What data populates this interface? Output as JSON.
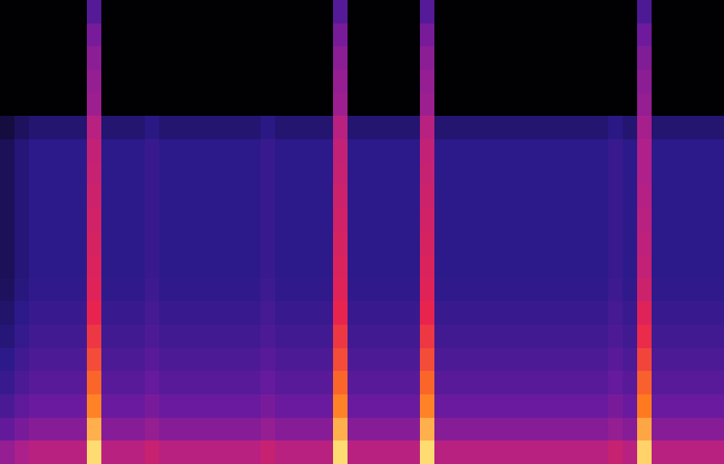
{
  "chart_data": {
    "type": "heatmap",
    "tick_labels": false,
    "zlim": [
      0,
      100
    ],
    "cells": [
      [
        2,
        2,
        2,
        2,
        2,
        2,
        40,
        2,
        2,
        2,
        2,
        2,
        2,
        2,
        2,
        2,
        2,
        2,
        2,
        2,
        2,
        2,
        2,
        40,
        2,
        2,
        2,
        2,
        2,
        40,
        2,
        2,
        2,
        2,
        2,
        2,
        2,
        2,
        2,
        2,
        2,
        2,
        2,
        2,
        38,
        2,
        2,
        2,
        2,
        2
      ],
      [
        2,
        2,
        2,
        2,
        2,
        2,
        48,
        2,
        2,
        2,
        2,
        2,
        2,
        2,
        2,
        2,
        2,
        2,
        2,
        2,
        2,
        2,
        2,
        48,
        2,
        2,
        2,
        2,
        2,
        48,
        2,
        2,
        2,
        2,
        2,
        2,
        2,
        2,
        2,
        2,
        2,
        2,
        2,
        2,
        46,
        2,
        2,
        2,
        2,
        2
      ],
      [
        2,
        2,
        2,
        2,
        2,
        2,
        52,
        2,
        2,
        2,
        2,
        2,
        2,
        2,
        2,
        2,
        2,
        2,
        2,
        2,
        2,
        2,
        2,
        52,
        2,
        2,
        2,
        2,
        2,
        52,
        2,
        2,
        2,
        2,
        2,
        2,
        2,
        2,
        2,
        2,
        2,
        2,
        2,
        2,
        50,
        2,
        2,
        2,
        2,
        2
      ],
      [
        2,
        2,
        2,
        2,
        2,
        2,
        54,
        2,
        2,
        2,
        2,
        2,
        2,
        2,
        2,
        2,
        2,
        2,
        2,
        2,
        2,
        2,
        2,
        54,
        2,
        2,
        2,
        2,
        2,
        54,
        2,
        2,
        2,
        2,
        2,
        2,
        2,
        2,
        2,
        2,
        2,
        2,
        2,
        2,
        52,
        2,
        2,
        2,
        2,
        2
      ],
      [
        2,
        2,
        2,
        2,
        2,
        2,
        56,
        2,
        2,
        2,
        2,
        2,
        2,
        2,
        2,
        2,
        2,
        2,
        2,
        2,
        2,
        2,
        2,
        56,
        2,
        2,
        2,
        2,
        2,
        56,
        2,
        2,
        2,
        2,
        2,
        2,
        2,
        2,
        2,
        2,
        2,
        2,
        2,
        2,
        54,
        2,
        2,
        2,
        2,
        2
      ],
      [
        18,
        23,
        26,
        26,
        26,
        26,
        62,
        26,
        26,
        26,
        29,
        26,
        26,
        26,
        26,
        26,
        26,
        26,
        29,
        26,
        26,
        26,
        26,
        62,
        26,
        26,
        26,
        26,
        26,
        62,
        26,
        26,
        26,
        26,
        26,
        26,
        26,
        26,
        26,
        26,
        26,
        26,
        29,
        26,
        58,
        26,
        26,
        26,
        26,
        26
      ],
      [
        22,
        27,
        30,
        30,
        30,
        30,
        64,
        30,
        30,
        30,
        33,
        30,
        30,
        30,
        30,
        30,
        30,
        30,
        33,
        30,
        30,
        30,
        30,
        64,
        30,
        30,
        30,
        30,
        30,
        64,
        30,
        30,
        30,
        30,
        30,
        30,
        30,
        30,
        30,
        30,
        30,
        30,
        33,
        30,
        60,
        30,
        30,
        30,
        30,
        30
      ],
      [
        22,
        27,
        30,
        30,
        30,
        30,
        65,
        30,
        30,
        30,
        33,
        30,
        30,
        30,
        30,
        30,
        30,
        30,
        33,
        30,
        30,
        30,
        30,
        65,
        30,
        30,
        30,
        30,
        30,
        65,
        30,
        30,
        30,
        30,
        30,
        30,
        30,
        30,
        30,
        30,
        30,
        30,
        33,
        30,
        60,
        30,
        30,
        30,
        30,
        30
      ],
      [
        22,
        27,
        30,
        30,
        30,
        30,
        66,
        30,
        30,
        30,
        33,
        30,
        30,
        30,
        30,
        30,
        30,
        30,
        33,
        30,
        30,
        30,
        30,
        66,
        30,
        30,
        30,
        30,
        30,
        66,
        30,
        30,
        30,
        30,
        30,
        30,
        30,
        30,
        30,
        30,
        30,
        30,
        33,
        30,
        61,
        30,
        30,
        30,
        30,
        30
      ],
      [
        22,
        27,
        30,
        30,
        30,
        30,
        67,
        30,
        30,
        30,
        33,
        30,
        30,
        30,
        30,
        30,
        30,
        30,
        33,
        30,
        30,
        30,
        30,
        67,
        30,
        30,
        30,
        30,
        30,
        67,
        30,
        30,
        30,
        30,
        30,
        30,
        30,
        30,
        30,
        30,
        30,
        30,
        33,
        30,
        62,
        30,
        30,
        30,
        30,
        30
      ],
      [
        22,
        27,
        30,
        30,
        30,
        30,
        68,
        30,
        30,
        30,
        33,
        30,
        30,
        30,
        30,
        30,
        30,
        30,
        33,
        30,
        30,
        30,
        30,
        68,
        30,
        30,
        30,
        30,
        30,
        68,
        30,
        30,
        30,
        30,
        30,
        30,
        30,
        30,
        30,
        30,
        30,
        30,
        33,
        30,
        63,
        30,
        30,
        30,
        30,
        30
      ],
      [
        22,
        27,
        30,
        30,
        30,
        30,
        69,
        30,
        30,
        30,
        33,
        30,
        30,
        30,
        30,
        30,
        30,
        30,
        33,
        30,
        30,
        30,
        30,
        69,
        30,
        30,
        30,
        30,
        30,
        69,
        30,
        30,
        30,
        30,
        30,
        30,
        30,
        30,
        30,
        30,
        30,
        30,
        33,
        30,
        64,
        30,
        30,
        30,
        30,
        30
      ],
      [
        23,
        28,
        31,
        31,
        31,
        31,
        70,
        31,
        31,
        31,
        34,
        31,
        31,
        31,
        31,
        31,
        31,
        31,
        34,
        31,
        31,
        31,
        31,
        70,
        31,
        31,
        31,
        31,
        31,
        70,
        31,
        31,
        31,
        31,
        31,
        31,
        31,
        31,
        31,
        31,
        31,
        31,
        34,
        31,
        66,
        31,
        31,
        31,
        31,
        31
      ],
      [
        25,
        30,
        33,
        33,
        33,
        33,
        72,
        33,
        33,
        33,
        36,
        33,
        33,
        33,
        33,
        33,
        33,
        33,
        36,
        33,
        33,
        33,
        33,
        72,
        33,
        33,
        33,
        33,
        33,
        72,
        33,
        33,
        33,
        33,
        33,
        33,
        33,
        33,
        33,
        33,
        33,
        33,
        36,
        33,
        70,
        33,
        33,
        33,
        33,
        33
      ],
      [
        27,
        32,
        35,
        35,
        35,
        35,
        75,
        35,
        35,
        35,
        38,
        35,
        35,
        35,
        35,
        35,
        35,
        35,
        38,
        35,
        35,
        35,
        35,
        75,
        35,
        35,
        35,
        35,
        35,
        75,
        35,
        35,
        35,
        35,
        35,
        35,
        35,
        35,
        35,
        35,
        35,
        35,
        38,
        35,
        73,
        35,
        35,
        35,
        35,
        35
      ],
      [
        30,
        35,
        38,
        38,
        38,
        38,
        78,
        38,
        38,
        38,
        41,
        38,
        38,
        38,
        38,
        38,
        38,
        38,
        41,
        38,
        38,
        38,
        38,
        78,
        38,
        38,
        38,
        38,
        38,
        78,
        38,
        38,
        38,
        38,
        38,
        38,
        38,
        38,
        38,
        38,
        38,
        38,
        41,
        38,
        77,
        38,
        38,
        38,
        38,
        38
      ],
      [
        33,
        38,
        41,
        41,
        41,
        41,
        82,
        41,
        41,
        41,
        44,
        41,
        41,
        41,
        41,
        41,
        41,
        41,
        44,
        41,
        41,
        41,
        41,
        82,
        41,
        41,
        41,
        41,
        41,
        82,
        41,
        41,
        41,
        41,
        41,
        41,
        41,
        41,
        41,
        41,
        41,
        41,
        44,
        41,
        81,
        41,
        41,
        41,
        41,
        41
      ],
      [
        37,
        42,
        45,
        45,
        45,
        45,
        86,
        45,
        45,
        45,
        48,
        45,
        45,
        45,
        45,
        45,
        45,
        45,
        48,
        45,
        45,
        45,
        45,
        86,
        45,
        45,
        45,
        45,
        45,
        86,
        45,
        45,
        45,
        45,
        45,
        45,
        45,
        45,
        45,
        45,
        45,
        45,
        48,
        45,
        85,
        45,
        45,
        45,
        45,
        45
      ],
      [
        43,
        48,
        51,
        51,
        51,
        51,
        91,
        51,
        51,
        51,
        54,
        51,
        51,
        51,
        51,
        51,
        51,
        51,
        54,
        51,
        51,
        51,
        51,
        91,
        51,
        51,
        51,
        51,
        51,
        91,
        51,
        51,
        51,
        51,
        51,
        51,
        51,
        51,
        51,
        51,
        51,
        51,
        54,
        51,
        90,
        51,
        51,
        51,
        51,
        51
      ],
      [
        54,
        59,
        62,
        62,
        62,
        62,
        96,
        62,
        62,
        62,
        65,
        62,
        62,
        62,
        62,
        62,
        62,
        62,
        65,
        62,
        62,
        62,
        62,
        96,
        62,
        62,
        62,
        62,
        62,
        96,
        62,
        62,
        62,
        62,
        62,
        62,
        62,
        62,
        62,
        62,
        62,
        62,
        65,
        62,
        95,
        62,
        62,
        62,
        62,
        62
      ]
    ]
  }
}
